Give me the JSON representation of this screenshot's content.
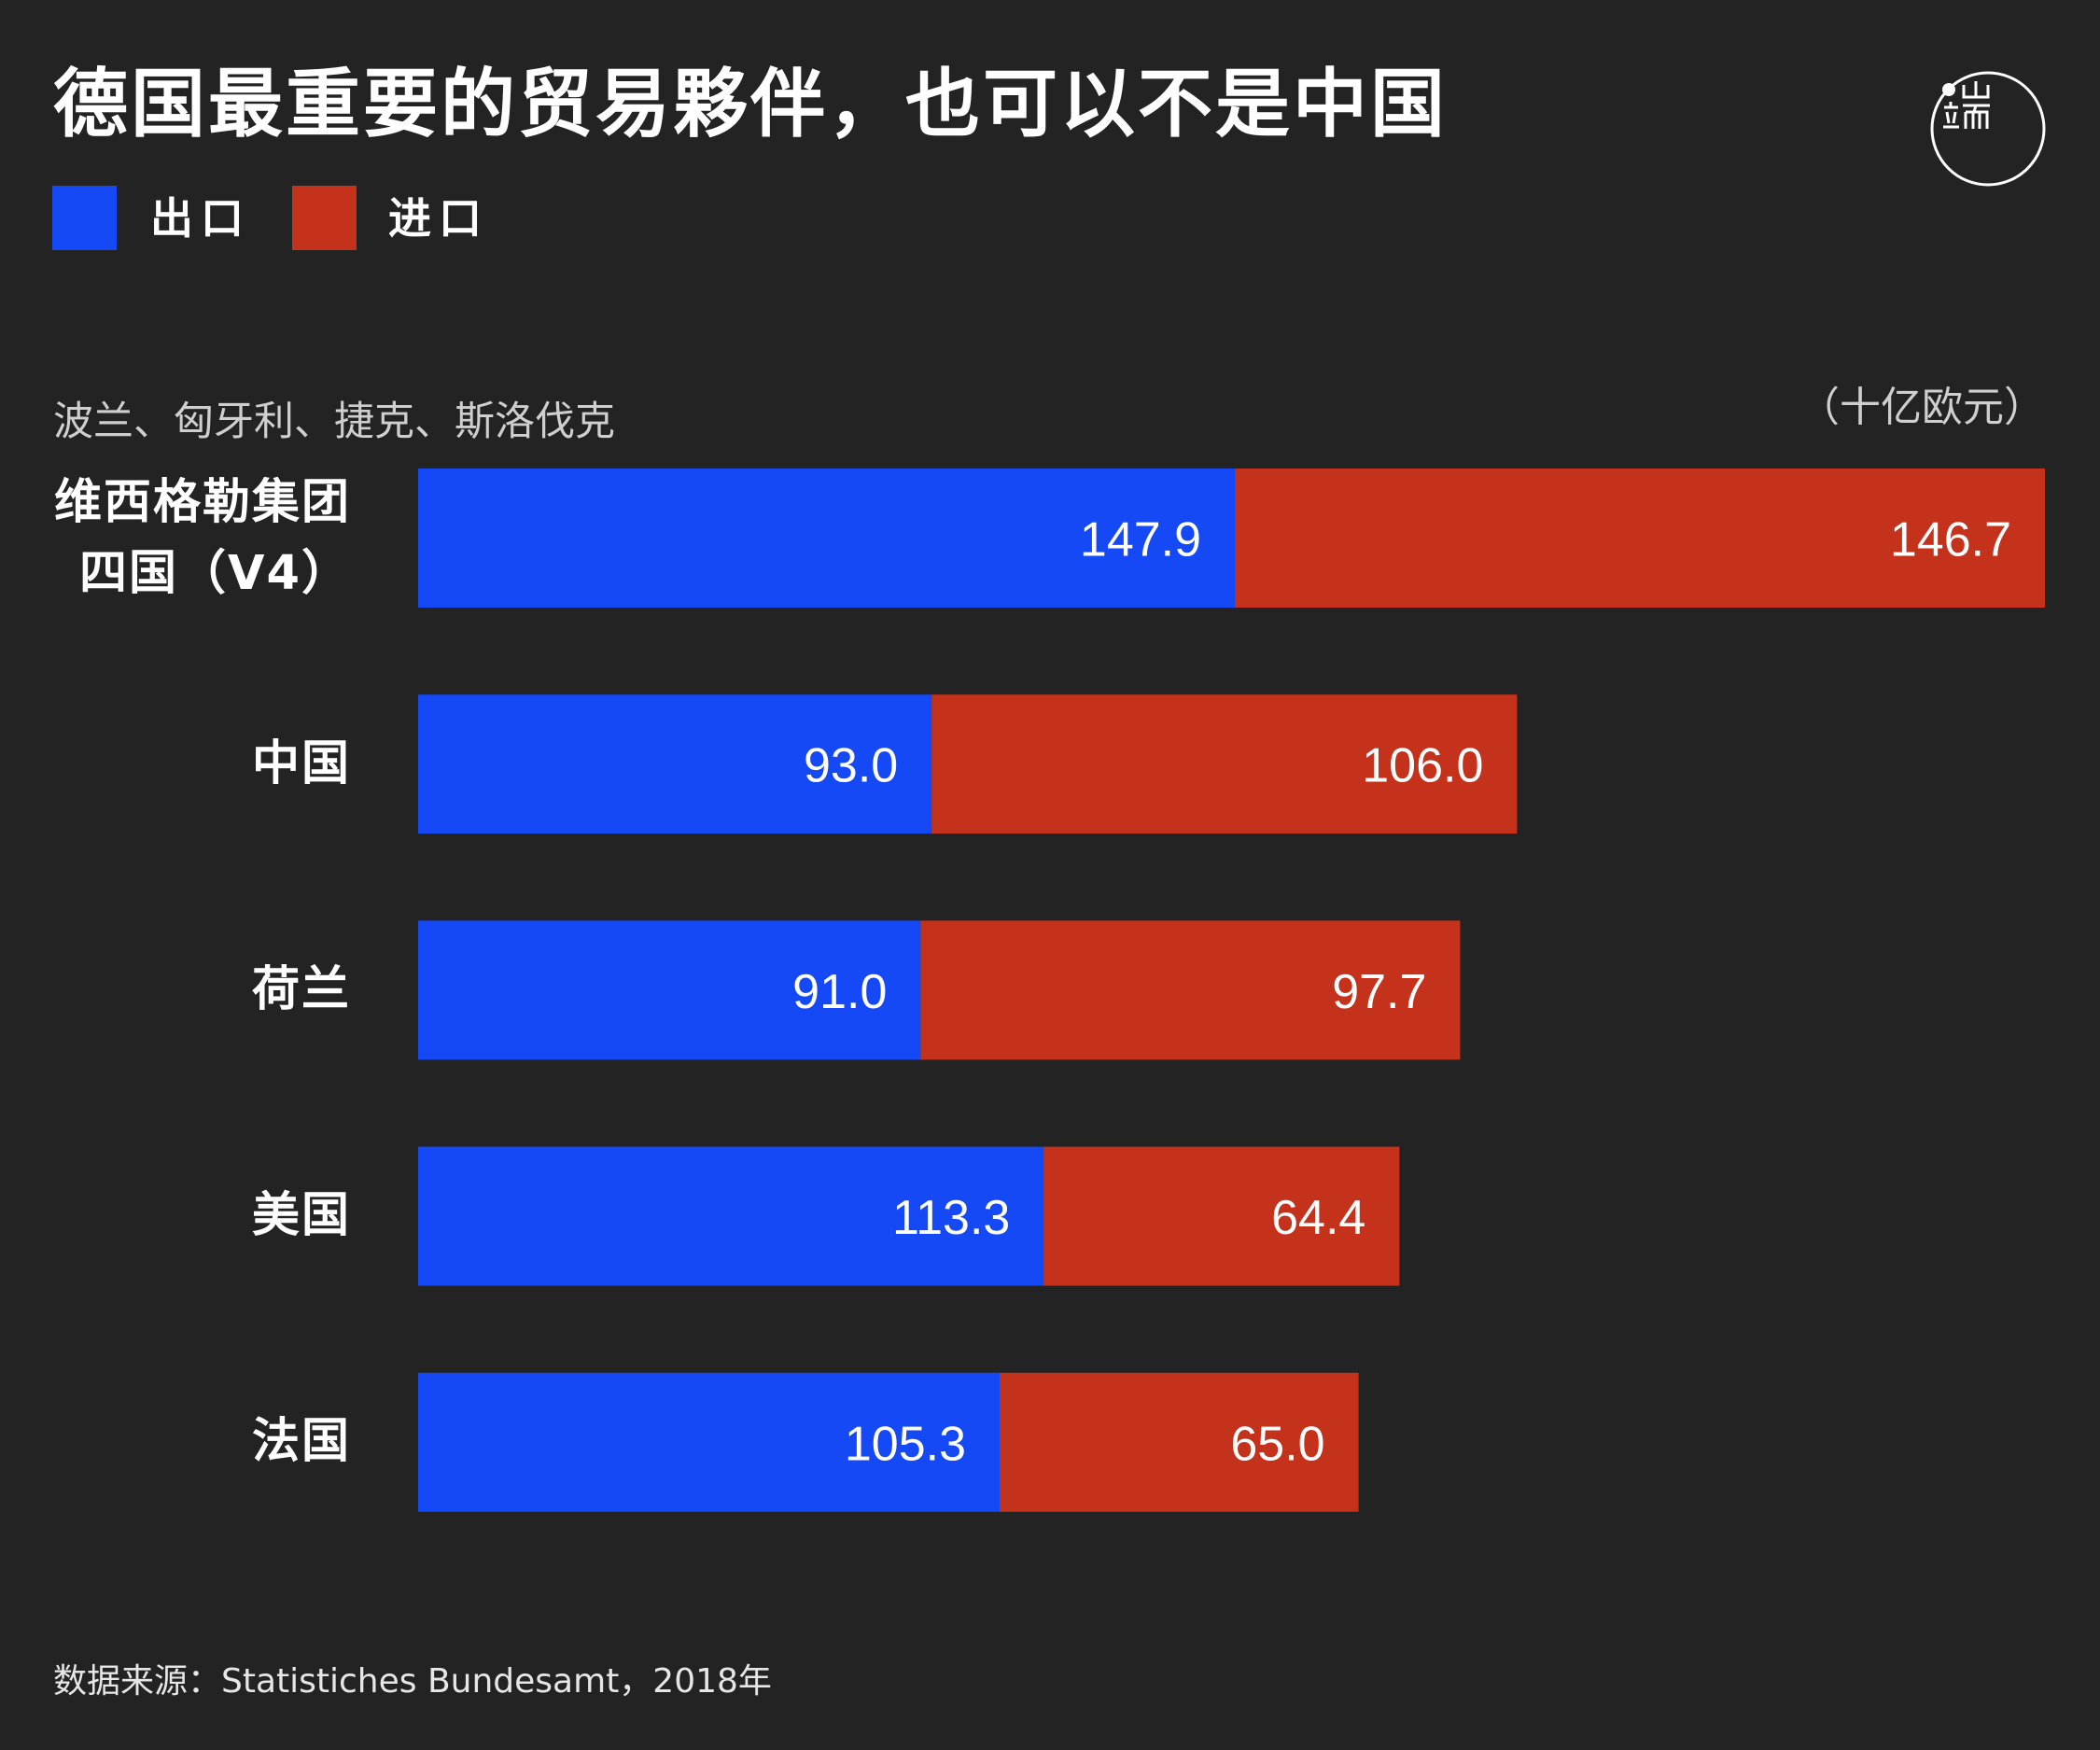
{
  "logo": {
    "icon": "initium-logo-icon",
    "color": "#ffffff"
  },
  "colors": {
    "background": "#232323",
    "text": "#ffffff",
    "muted_text": "#cfcfcf"
  },
  "source": "数据来源：Statistiches Bundesamt，2018年",
  "chart_data": {
    "type": "bar",
    "orientation": "horizontal",
    "stacked": true,
    "grid": false,
    "legend": "top-left",
    "title": "德国最重要的贸易夥伴，也可以不是中国",
    "annotation": "波兰、匈牙利、捷克、斯洛伐克",
    "unit": "（十亿欧元）",
    "categories": [
      "维西格勒集团\n四国（V4）",
      "中国",
      "荷兰",
      "美国",
      "法国"
    ],
    "series": [
      {
        "name": "出口",
        "color": "#1549F5",
        "values": [
          147.9,
          93.0,
          91.0,
          113.3,
          105.3
        ]
      },
      {
        "name": "进口",
        "color": "#C4321C",
        "values": [
          146.7,
          106.0,
          97.7,
          64.4,
          65.0
        ]
      }
    ]
  }
}
